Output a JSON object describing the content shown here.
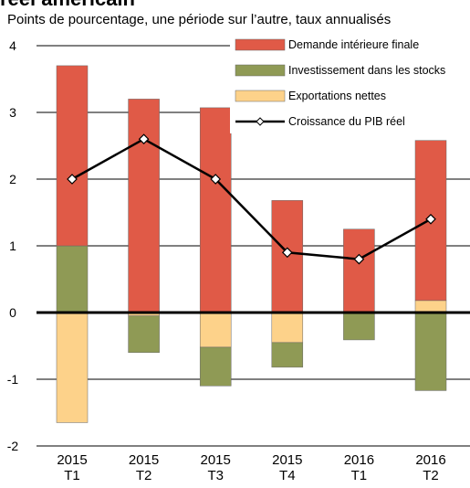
{
  "chart_data": {
    "type": "bar",
    "title": "réel américain",
    "subtitle": "Points de pourcentage, une période sur l’autre, taux annualisés",
    "categories": [
      [
        "2015",
        "T1"
      ],
      [
        "2015",
        "T2"
      ],
      [
        "2015",
        "T3"
      ],
      [
        "2015",
        "T4"
      ],
      [
        "2016",
        "T1"
      ],
      [
        "2016",
        "T2"
      ]
    ],
    "stacked": true,
    "series": [
      {
        "name": "Demande intérieure finale",
        "color": "#e05a47",
        "values": [
          2.7,
          3.2,
          3.07,
          1.68,
          1.25,
          2.4
        ]
      },
      {
        "name": "Investissement dans les stocks",
        "color": "#8f9a55",
        "values": [
          1.0,
          -0.55,
          -0.58,
          -0.37,
          -0.41,
          -1.17
        ]
      },
      {
        "name": "Exportations nettes",
        "color": "#fdd28a",
        "values": [
          -1.65,
          -0.05,
          -0.52,
          -0.45,
          0,
          0.18
        ]
      },
      {
        "name": "Croissance du PIB réel",
        "type": "line",
        "color": "#000000",
        "values": [
          2.0,
          2.6,
          2.0,
          0.9,
          0.8,
          1.4
        ]
      }
    ],
    "ylim": [
      -2,
      4
    ],
    "yticks": [
      -2,
      -1,
      0,
      1,
      2,
      3,
      4
    ],
    "grid": true,
    "legend": "top-right"
  }
}
